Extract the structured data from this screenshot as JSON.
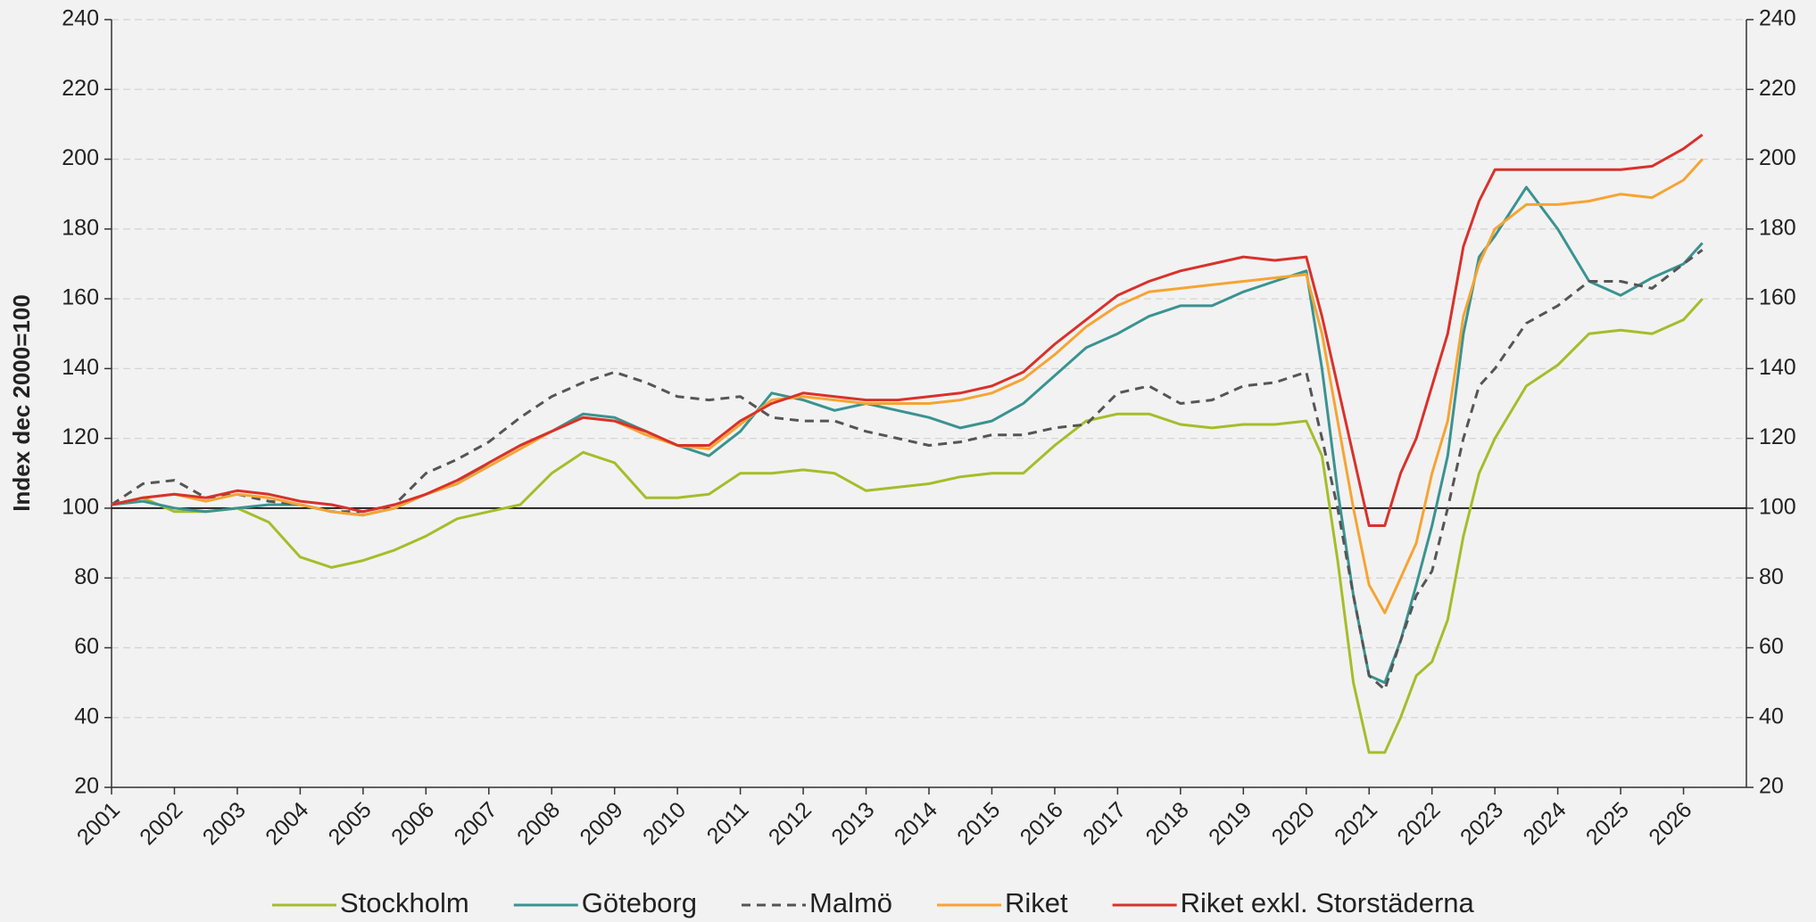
{
  "chart_data": {
    "type": "line",
    "y_label": "Index dec 2000=100",
    "x": [
      2001,
      2001.5,
      2002,
      2002.5,
      2003,
      2003.5,
      2004,
      2004.5,
      2005,
      2005.5,
      2006,
      2006.5,
      2007,
      2007.5,
      2008,
      2008.5,
      2009,
      2009.5,
      2010,
      2010.5,
      2011,
      2011.5,
      2012,
      2012.5,
      2013,
      2013.5,
      2014,
      2014.5,
      2015,
      2015.5,
      2016,
      2016.5,
      2017,
      2017.5,
      2018,
      2018.5,
      2019,
      2019.5,
      2020,
      2020.25,
      2020.5,
      2020.75,
      2021,
      2021.25,
      2021.5,
      2021.75,
      2022,
      2022.25,
      2022.5,
      2022.75,
      2023,
      2023.5,
      2024,
      2024.5,
      2025,
      2025.5,
      2026,
      2026.3
    ],
    "xlim": [
      2001,
      2027
    ],
    "xticks": [
      2001,
      2002,
      2003,
      2004,
      2005,
      2006,
      2007,
      2008,
      2009,
      2010,
      2011,
      2012,
      2013,
      2014,
      2015,
      2016,
      2017,
      2018,
      2019,
      2020,
      2021,
      2022,
      2023,
      2024,
      2025,
      2026
    ],
    "ylim": [
      20,
      240
    ],
    "yticks": [
      20,
      40,
      60,
      80,
      100,
      120,
      140,
      160,
      180,
      200,
      220,
      240
    ],
    "y2lim": [
      20,
      240
    ],
    "y2ticks": [
      20,
      40,
      60,
      80,
      100,
      120,
      140,
      160,
      180,
      200,
      220,
      240
    ],
    "reference_line": 100,
    "grid": true,
    "legend": "bottom",
    "series": [
      {
        "name": "Stockholm",
        "color": "#a5bd2a",
        "style": "solid",
        "values": [
          101,
          103,
          99,
          99,
          100,
          96,
          86,
          83,
          85,
          88,
          92,
          97,
          99,
          101,
          110,
          116,
          113,
          103,
          103,
          104,
          110,
          110,
          111,
          110,
          105,
          106,
          107,
          109,
          110,
          110,
          118,
          125,
          127,
          127,
          124,
          123,
          124,
          124,
          125,
          115,
          85,
          50,
          30,
          30,
          40,
          52,
          56,
          68,
          92,
          110,
          120,
          135,
          141,
          150,
          151,
          150,
          154,
          160
        ]
      },
      {
        "name": "Göteborg",
        "color": "#3a9391",
        "style": "solid",
        "values": [
          101,
          102,
          100,
          99,
          100,
          101,
          101,
          99,
          98,
          100,
          104,
          107,
          113,
          118,
          122,
          127,
          126,
          122,
          118,
          115,
          122,
          133,
          131,
          128,
          130,
          128,
          126,
          123,
          125,
          130,
          138,
          146,
          150,
          155,
          158,
          158,
          162,
          165,
          168,
          140,
          105,
          75,
          52,
          50,
          62,
          78,
          95,
          115,
          150,
          172,
          178,
          192,
          180,
          165,
          161,
          166,
          170,
          176
        ]
      },
      {
        "name": "Malmö",
        "color": "#555555",
        "style": "dashed",
        "values": [
          101,
          107,
          108,
          103,
          104,
          102,
          101,
          99,
          99,
          101,
          110,
          114,
          119,
          126,
          132,
          136,
          139,
          136,
          132,
          131,
          132,
          126,
          125,
          125,
          122,
          120,
          118,
          119,
          121,
          121,
          123,
          124,
          133,
          135,
          130,
          131,
          135,
          136,
          139,
          120,
          100,
          75,
          52,
          48,
          62,
          75,
          82,
          100,
          120,
          135,
          140,
          153,
          158,
          165,
          165,
          163,
          170,
          174
        ]
      },
      {
        "name": "Riket",
        "color": "#f6a433",
        "style": "solid",
        "values": [
          101,
          103,
          104,
          102,
          104,
          103,
          101,
          99,
          98,
          100,
          104,
          107,
          112,
          117,
          122,
          126,
          125,
          121,
          118,
          117,
          124,
          131,
          132,
          131,
          130,
          130,
          130,
          131,
          133,
          137,
          144,
          152,
          158,
          162,
          163,
          164,
          165,
          166,
          167,
          150,
          125,
          100,
          78,
          70,
          80,
          90,
          110,
          125,
          155,
          170,
          180,
          187,
          187,
          188,
          190,
          189,
          194,
          200
        ]
      },
      {
        "name": "Riket exkl. Storstäderna",
        "color": "#d9312b",
        "style": "solid",
        "values": [
          101,
          103,
          104,
          103,
          105,
          104,
          102,
          101,
          99,
          101,
          104,
          108,
          113,
          118,
          122,
          126,
          125,
          122,
          118,
          118,
          125,
          130,
          133,
          132,
          131,
          131,
          132,
          133,
          135,
          139,
          147,
          154,
          161,
          165,
          168,
          170,
          172,
          171,
          172,
          155,
          135,
          115,
          95,
          95,
          110,
          120,
          135,
          150,
          175,
          188,
          197,
          197,
          197,
          197,
          197,
          198,
          203,
          207
        ]
      }
    ]
  }
}
